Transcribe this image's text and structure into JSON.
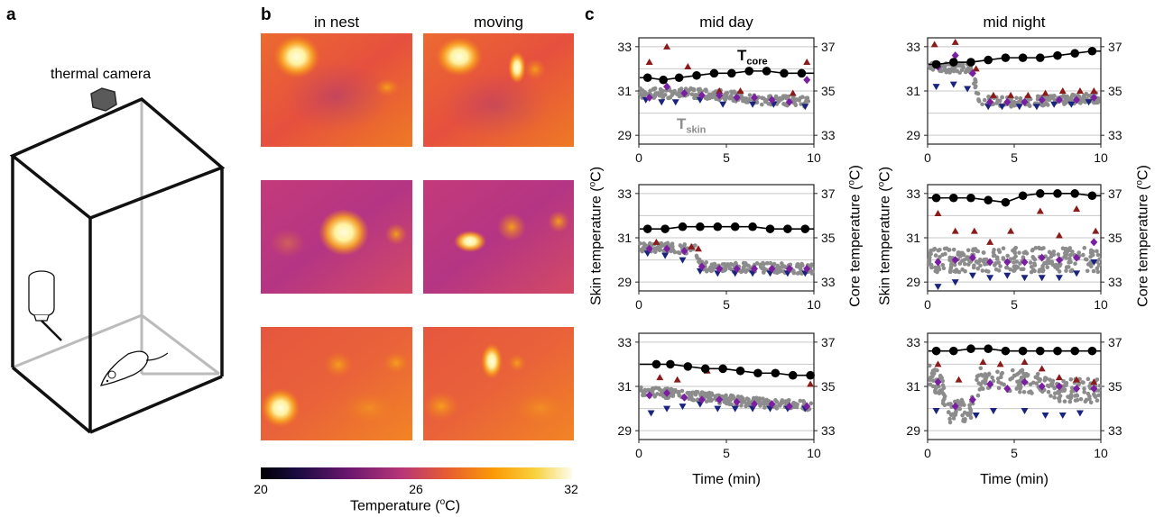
{
  "panels": {
    "a": {
      "letter": "a",
      "camera_label": "thermal camera"
    },
    "b": {
      "letter": "b",
      "col_titles": [
        "in nest",
        "moving"
      ],
      "colorbar": {
        "ticks": [
          "20",
          "26",
          "32"
        ],
        "label_prefix": "Temperature (",
        "label_sup": "o",
        "label_suffix": "C)"
      }
    },
    "c": {
      "letter": "c",
      "col_titles": [
        "mid day",
        "mid night"
      ],
      "x_label": "Time (min)",
      "y_left_prefix": "Skin temperature (",
      "y_right_prefix": "Core temperature (",
      "unit_sup": "o",
      "unit_suffix": "C)",
      "t_core_main": "T",
      "t_core_sub": "core",
      "t_skin_main": "T",
      "t_skin_sub": "skin"
    }
  },
  "colors": {
    "core_line": "#000000",
    "skin_points": "#8c8c8c",
    "max_marker": "#8b1a1a",
    "min_marker": "#1a237e",
    "mean_marker": "#7b1fa2"
  },
  "chart_data": [
    {
      "type": "scatter",
      "panel": "c-mid-day-1",
      "xlim": [
        0,
        10
      ],
      "ylim_skin": [
        28.6,
        33.4
      ],
      "ylim_core": [
        32.6,
        37.4
      ],
      "x_ticks": [
        "0",
        "5",
        "10"
      ],
      "y_ticks_skin": [
        "29",
        "31",
        "33"
      ],
      "y_ticks_core": [
        "33",
        "35",
        "37"
      ],
      "core": {
        "x": [
          0.5,
          1.4,
          2.3,
          3.3,
          4.3,
          5.3,
          6.3,
          7.3,
          8.3,
          9.3
        ],
        "y": [
          35.6,
          35.5,
          35.6,
          35.7,
          35.8,
          35.8,
          35.9,
          35.9,
          35.8,
          35.8
        ]
      },
      "skin_trend": [
        [
          0,
          30.9
        ],
        [
          3,
          30.9
        ],
        [
          5,
          30.8
        ],
        [
          7,
          30.6
        ],
        [
          10,
          30.5
        ]
      ],
      "max": {
        "x": [
          0.6,
          1.6,
          2.8,
          4.6,
          5.8,
          8.8,
          9.6
        ],
        "y": [
          32.3,
          33.0,
          32.1,
          31.0,
          31.0,
          30.9,
          32.3
        ]
      },
      "min": {
        "x": [
          0.4,
          1.3,
          2.1,
          3.5,
          4.8,
          6.5,
          7.7,
          9.5
        ],
        "y": [
          30.6,
          30.5,
          30.5,
          30.6,
          30.4,
          30.4,
          30.4,
          30.3
        ]
      },
      "mean": {
        "x": [
          0.6,
          1.6,
          2.6,
          3.6,
          4.6,
          5.6,
          6.6,
          7.6,
          8.6,
          9.6
        ],
        "y": [
          30.7,
          31.2,
          30.9,
          30.8,
          30.8,
          30.7,
          30.7,
          30.6,
          30.5,
          31.5
        ]
      }
    },
    {
      "type": "scatter",
      "panel": "c-mid-night-1",
      "xlim": [
        0,
        10
      ],
      "ylim_skin": [
        28.6,
        33.4
      ],
      "ylim_core": [
        32.6,
        37.4
      ],
      "x_ticks": [
        "0",
        "5",
        "10"
      ],
      "y_ticks_skin": [
        "29",
        "31",
        "33"
      ],
      "y_ticks_core": [
        "33",
        "35",
        "37"
      ],
      "core": {
        "x": [
          0.5,
          1.5,
          2.5,
          3.5,
          4.5,
          5.5,
          6.5,
          7.5,
          8.5,
          9.5
        ],
        "y": [
          36.2,
          36.3,
          36.3,
          36.4,
          36.5,
          36.5,
          36.5,
          36.6,
          36.7,
          36.8
        ]
      },
      "skin_trend": [
        [
          0,
          32.1
        ],
        [
          2.5,
          32.0
        ],
        [
          3,
          30.6
        ],
        [
          5,
          30.5
        ],
        [
          10,
          30.7
        ]
      ],
      "max": {
        "x": [
          0.4,
          1.6,
          2.8,
          3.8,
          4.8,
          5.8,
          6.8,
          7.8,
          8.8,
          9.6
        ],
        "y": [
          33.1,
          33.2,
          32.0,
          30.8,
          30.8,
          30.8,
          30.9,
          31.0,
          31.0,
          31.0
        ]
      },
      "min": {
        "x": [
          0.5,
          1.5,
          2.3,
          3.5,
          4.3,
          5.3,
          6.3,
          7.3,
          8.3,
          9.3
        ],
        "y": [
          31.2,
          31.3,
          31.1,
          30.3,
          30.3,
          30.3,
          30.3,
          30.4,
          30.4,
          30.5
        ]
      },
      "mean": {
        "x": [
          0.6,
          1.6,
          2.6,
          3.6,
          4.6,
          5.6,
          6.6,
          7.6,
          8.6,
          9.6
        ],
        "y": [
          32.1,
          32.6,
          31.8,
          30.5,
          30.5,
          30.5,
          30.6,
          30.6,
          30.6,
          30.7
        ]
      }
    },
    {
      "type": "scatter",
      "panel": "c-mid-day-2",
      "xlim": [
        0,
        10
      ],
      "ylim_skin": [
        28.6,
        33.4
      ],
      "ylim_core": [
        32.6,
        37.4
      ],
      "x_ticks": [
        "0",
        "5",
        "10"
      ],
      "y_ticks_skin": [
        "29",
        "31",
        "33"
      ],
      "y_ticks_core": [
        "33",
        "35",
        "37"
      ],
      "core": {
        "x": [
          0.5,
          1.5,
          2.5,
          3.5,
          4.5,
          5.5,
          6.5,
          7.5,
          8.5,
          9.5
        ],
        "y": [
          35.4,
          35.4,
          35.5,
          35.5,
          35.5,
          35.5,
          35.5,
          35.4,
          35.4,
          35.4
        ]
      },
      "skin_trend": [
        [
          0,
          30.6
        ],
        [
          3.2,
          30.5
        ],
        [
          3.6,
          29.7
        ],
        [
          10,
          29.6
        ]
      ],
      "max": {
        "x": [
          1.0,
          3.0,
          3.4
        ],
        "y": [
          30.8,
          30.6,
          30.5
        ]
      },
      "min": {
        "x": [
          0.5,
          1.5,
          2.5,
          3.5,
          4.5,
          5.5,
          6.5,
          7.5,
          8.5,
          9.5
        ],
        "y": [
          30.3,
          30.2,
          30.0,
          29.5,
          29.4,
          29.4,
          29.4,
          29.4,
          29.4,
          29.4
        ]
      },
      "mean": {
        "x": [
          0.6,
          1.6,
          2.6,
          3.6,
          4.6,
          5.6,
          6.6,
          7.6,
          8.6,
          9.6
        ],
        "y": [
          30.5,
          30.5,
          30.4,
          29.7,
          29.6,
          29.6,
          29.6,
          29.6,
          29.6,
          29.6
        ]
      }
    },
    {
      "type": "scatter",
      "panel": "c-mid-night-2",
      "xlim": [
        0,
        10
      ],
      "ylim_skin": [
        28.6,
        33.4
      ],
      "ylim_core": [
        32.6,
        37.4
      ],
      "x_ticks": [
        "0",
        "5",
        "10"
      ],
      "y_ticks_skin": [
        "29",
        "31",
        "33"
      ],
      "y_ticks_core": [
        "33",
        "35",
        "37"
      ],
      "core": {
        "x": [
          0.5,
          1.5,
          2.5,
          3.5,
          4.5,
          5.5,
          6.5,
          7.5,
          8.5,
          9.5
        ],
        "y": [
          36.8,
          36.8,
          36.8,
          36.7,
          36.6,
          36.9,
          37.0,
          37.0,
          37.0,
          36.9
        ]
      },
      "skin_trend": [
        [
          0,
          30.0
        ],
        [
          10,
          30.0
        ]
      ],
      "max": {
        "x": [
          0.6,
          1.6,
          2.7,
          3.6,
          4.8,
          6.5,
          7.6,
          8.6,
          9.7
        ],
        "y": [
          32.1,
          31.3,
          31.3,
          30.8,
          31.3,
          32.2,
          31.1,
          32.3,
          31.3
        ]
      },
      "min": {
        "x": [
          0.6,
          1.6,
          2.6,
          3.6,
          4.6,
          5.6,
          6.6,
          7.6,
          8.6,
          9.6
        ],
        "y": [
          28.8,
          29.0,
          29.3,
          29.2,
          29.3,
          29.2,
          29.2,
          29.2,
          29.4,
          29.9
        ]
      },
      "mean": {
        "x": [
          0.6,
          1.6,
          2.6,
          3.6,
          4.6,
          5.6,
          6.6,
          7.6,
          8.6,
          9.6
        ],
        "y": [
          29.9,
          30.0,
          30.1,
          29.9,
          29.9,
          29.9,
          30.1,
          30.0,
          30.1,
          30.8
        ]
      }
    },
    {
      "type": "scatter",
      "panel": "c-mid-day-3",
      "xlim": [
        0,
        10
      ],
      "ylim_skin": [
        28.6,
        33.4
      ],
      "ylim_core": [
        32.6,
        37.4
      ],
      "x_ticks": [
        "0",
        "5",
        "10"
      ],
      "y_ticks_skin": [
        "29",
        "31",
        "33"
      ],
      "y_ticks_core": [
        "33",
        "35",
        "37"
      ],
      "core": {
        "x": [
          1.0,
          1.8,
          2.8,
          3.8,
          4.8,
          5.8,
          6.8,
          7.8,
          8.8,
          9.8
        ],
        "y": [
          36.0,
          36.0,
          35.9,
          35.8,
          35.8,
          35.7,
          35.6,
          35.6,
          35.5,
          35.5
        ]
      },
      "skin_trend": [
        [
          0,
          30.8
        ],
        [
          3,
          30.6
        ],
        [
          6,
          30.3
        ],
        [
          10,
          30.1
        ]
      ],
      "max": {
        "x": [
          1.2,
          2.2,
          3.9,
          9.8
        ],
        "y": [
          31.4,
          31.3,
          31.7,
          31.1
        ]
      },
      "min": {
        "x": [
          0.7,
          1.6,
          2.5,
          3.5,
          4.5,
          5.5,
          6.5,
          7.5,
          8.5,
          9.5
        ],
        "y": [
          29.8,
          30.0,
          30.1,
          30.2,
          30.0,
          30.0,
          30.0,
          30.0,
          30.0,
          30.0
        ]
      },
      "mean": {
        "x": [
          0.6,
          1.6,
          2.6,
          3.6,
          4.6,
          5.6,
          6.6,
          7.6,
          8.6,
          9.6
        ],
        "y": [
          30.6,
          30.7,
          30.5,
          30.4,
          30.4,
          30.3,
          30.2,
          30.2,
          30.1,
          30.1
        ]
      }
    },
    {
      "type": "scatter",
      "panel": "c-mid-night-3",
      "xlim": [
        0,
        10
      ],
      "ylim_skin": [
        28.6,
        33.4
      ],
      "ylim_core": [
        32.6,
        37.4
      ],
      "x_ticks": [
        "0",
        "5",
        "10"
      ],
      "y_ticks_skin": [
        "29",
        "31",
        "33"
      ],
      "y_ticks_core": [
        "33",
        "35",
        "37"
      ],
      "core": {
        "x": [
          0.5,
          1.5,
          2.5,
          3.5,
          4.5,
          5.5,
          6.5,
          7.5,
          8.5,
          9.5
        ],
        "y": [
          36.6,
          36.6,
          36.7,
          36.7,
          36.6,
          36.6,
          36.6,
          36.6,
          36.6,
          36.6
        ]
      },
      "skin_trend": [
        [
          0,
          31.6
        ],
        [
          0.8,
          31.0
        ],
        [
          1.2,
          29.9
        ],
        [
          2.5,
          29.9
        ],
        [
          3,
          31.3
        ],
        [
          6,
          31.2
        ],
        [
          8,
          30.8
        ],
        [
          10,
          30.8
        ]
      ],
      "max": {
        "x": [
          0.6,
          1.8,
          3.2,
          4.2,
          5.6,
          6.6,
          7.6,
          8.6,
          9.6
        ],
        "y": [
          32.0,
          31.3,
          32.1,
          32.0,
          32.1,
          31.8,
          31.4,
          31.3,
          31.2
        ]
      },
      "min": {
        "x": [
          0.5,
          2.8,
          3.8,
          5.6,
          6.8,
          7.8,
          8.8
        ],
        "y": [
          29.9,
          29.7,
          29.9,
          29.9,
          29.7,
          29.7,
          29.8
        ]
      },
      "mean": {
        "x": [
          0.6,
          1.6,
          2.6,
          3.6,
          4.6,
          5.6,
          6.6,
          7.6,
          8.6,
          9.6
        ],
        "y": [
          31.2,
          30.1,
          30.4,
          31.1,
          30.9,
          31.2,
          31.0,
          31.0,
          30.9,
          30.9
        ]
      }
    }
  ]
}
